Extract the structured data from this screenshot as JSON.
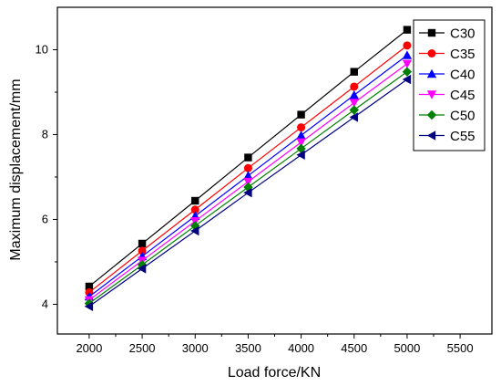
{
  "chart_data": {
    "type": "line",
    "title": "",
    "xlabel": "Load force/KN",
    "ylabel": "Maximum displacement/mm",
    "xlim": [
      1700,
      5800
    ],
    "ylim": [
      3.3,
      11.0
    ],
    "xticks": [
      2000,
      2500,
      3000,
      3500,
      4000,
      4500,
      5000,
      5500
    ],
    "yticks": [
      4,
      6,
      8,
      10
    ],
    "grid": false,
    "legend_position": "top-right",
    "x": [
      2000,
      2500,
      3000,
      3500,
      4000,
      4500,
      5000
    ],
    "series": [
      {
        "name": "C30",
        "color": "#000000",
        "marker": "square",
        "values": [
          4.42,
          5.43,
          6.44,
          7.46,
          8.47,
          9.48,
          10.47
        ]
      },
      {
        "name": "C35",
        "color": "#ff0000",
        "marker": "circle",
        "values": [
          4.28,
          5.26,
          6.23,
          7.21,
          8.17,
          9.13,
          10.1
        ]
      },
      {
        "name": "C40",
        "color": "#0000ff",
        "marker": "triangle-up",
        "values": [
          4.18,
          5.13,
          6.08,
          7.03,
          7.98,
          8.93,
          9.87
        ]
      },
      {
        "name": "C45",
        "color": "#ff00ff",
        "marker": "triangle-down",
        "values": [
          4.1,
          5.03,
          5.96,
          6.89,
          7.82,
          8.75,
          9.67
        ]
      },
      {
        "name": "C50",
        "color": "#008000",
        "marker": "diamond",
        "values": [
          4.02,
          4.93,
          5.85,
          6.76,
          7.67,
          8.58,
          9.48
        ]
      },
      {
        "name": "C55",
        "color": "#000080",
        "marker": "triangle-left",
        "values": [
          3.95,
          4.84,
          5.73,
          6.63,
          7.52,
          8.41,
          9.3
        ]
      }
    ]
  }
}
